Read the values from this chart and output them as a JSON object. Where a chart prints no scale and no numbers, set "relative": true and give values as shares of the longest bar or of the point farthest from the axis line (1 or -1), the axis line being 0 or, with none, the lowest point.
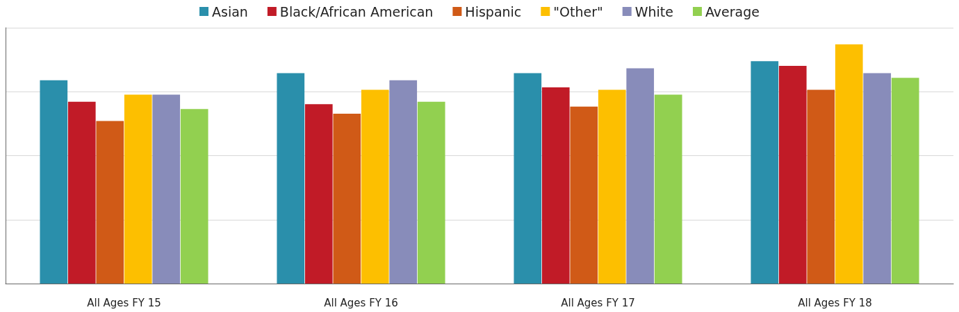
{
  "chart_data": {
    "type": "bar",
    "relative": true,
    "grid": true,
    "legend": "top",
    "categories": [
      "All Ages FY 15",
      "All Ages FY 16",
      "All Ages FY 17",
      "All Ages FY 18"
    ],
    "series": [
      {
        "name": "Asian",
        "color": "#2a8fab",
        "values": [
          0.85,
          0.88,
          0.88,
          0.93
        ]
      },
      {
        "name": "Black/African American",
        "color": "#c11b27",
        "values": [
          0.76,
          0.75,
          0.82,
          0.91
        ]
      },
      {
        "name": "Hispanic",
        "color": "#d05a17",
        "values": [
          0.68,
          0.71,
          0.74,
          0.81
        ]
      },
      {
        "name": "\"Other\"",
        "color": "#fdbf00",
        "values": [
          0.79,
          0.81,
          0.81,
          1
        ]
      },
      {
        "name": "White",
        "color": "#888cba",
        "values": [
          0.79,
          0.85,
          0.9,
          0.88
        ]
      },
      {
        "name": "Average",
        "color": "#92d050",
        "values": [
          0.73,
          0.76,
          0.79,
          0.86
        ]
      }
    ]
  }
}
